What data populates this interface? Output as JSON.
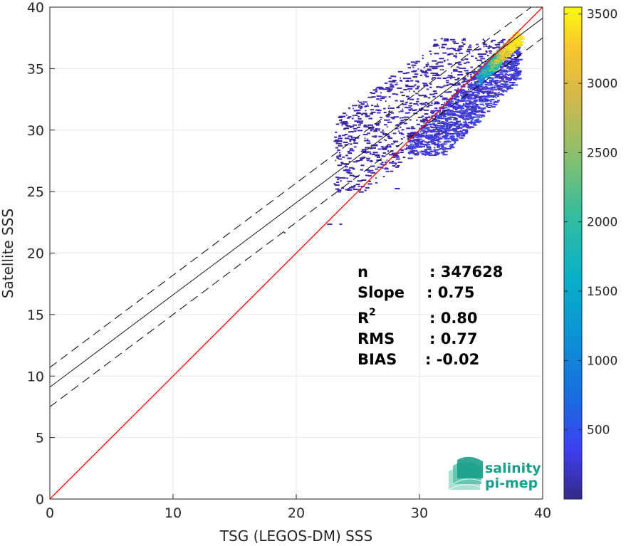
{
  "chart_data": {
    "type": "heatmap",
    "xlabel": "TSG (LEGOS-DM) SSS",
    "ylabel": "Satellite SSS",
    "xlim": [
      0,
      40
    ],
    "ylim": [
      0,
      40
    ],
    "xticks": [
      "0",
      "10",
      "20",
      "30",
      "40"
    ],
    "yticks": [
      "0",
      "5",
      "10",
      "15",
      "20",
      "25",
      "30",
      "35",
      "40"
    ],
    "grid": true,
    "colorbar": {
      "ticks": [
        "500",
        "1000",
        "1500",
        "2000",
        "2500",
        "3000",
        "3500"
      ],
      "tick_values": [
        500,
        1000,
        1500,
        2000,
        2500,
        3000,
        3500
      ],
      "range": [
        0,
        3550
      ],
      "colormap": "parula"
    },
    "lines": {
      "identity": {
        "slope": 1,
        "intercept": 0,
        "color": "#ff0000"
      },
      "regression": {
        "slope": 0.75,
        "intercept": 9.1,
        "color": "#000000"
      },
      "upper_bound": {
        "slope": 0.75,
        "intercept": 10.7,
        "style": "dashed"
      },
      "lower_bound": {
        "slope": 0.75,
        "intercept": 7.5,
        "style": "dashed"
      }
    },
    "density_regions": [
      {
        "x_range": [
          23,
          38
        ],
        "y_range": [
          25,
          37.5
        ],
        "level": "low"
      },
      {
        "x_range": [
          30,
          38
        ],
        "y_range": [
          30,
          37.5
        ],
        "level": "medium"
      },
      {
        "x_range": [
          35.5,
          38
        ],
        "y_range": [
          35.5,
          37.8
        ],
        "level": "high"
      }
    ]
  },
  "stats": {
    "rows": [
      {
        "label": "n",
        "sup": "",
        "value": ": 347628"
      },
      {
        "label": "Slope",
        "sup": "",
        "value": ": 0.75"
      },
      {
        "label": "R",
        "sup": "2",
        "value": ": 0.80"
      },
      {
        "label": "RMS",
        "sup": "",
        "value": ": 0.77"
      },
      {
        "label": "BIAS",
        "sup": "",
        "value": ": -0.02"
      }
    ]
  },
  "logo": {
    "line1": "salinity",
    "line2": "pi-mep",
    "color": "#1a9e8a"
  }
}
